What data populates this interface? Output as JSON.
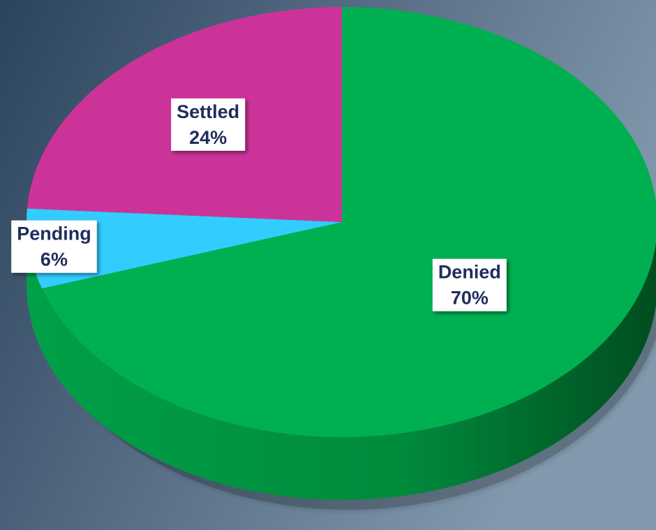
{
  "chart_data": {
    "type": "pie",
    "categories": [
      "Denied",
      "Pending",
      "Settled"
    ],
    "values": [
      70,
      6,
      24
    ],
    "value_labels": [
      "70%",
      "6%",
      "24%"
    ],
    "colors": [
      "#00b050",
      "#33ccff",
      "#cc3399"
    ]
  }
}
